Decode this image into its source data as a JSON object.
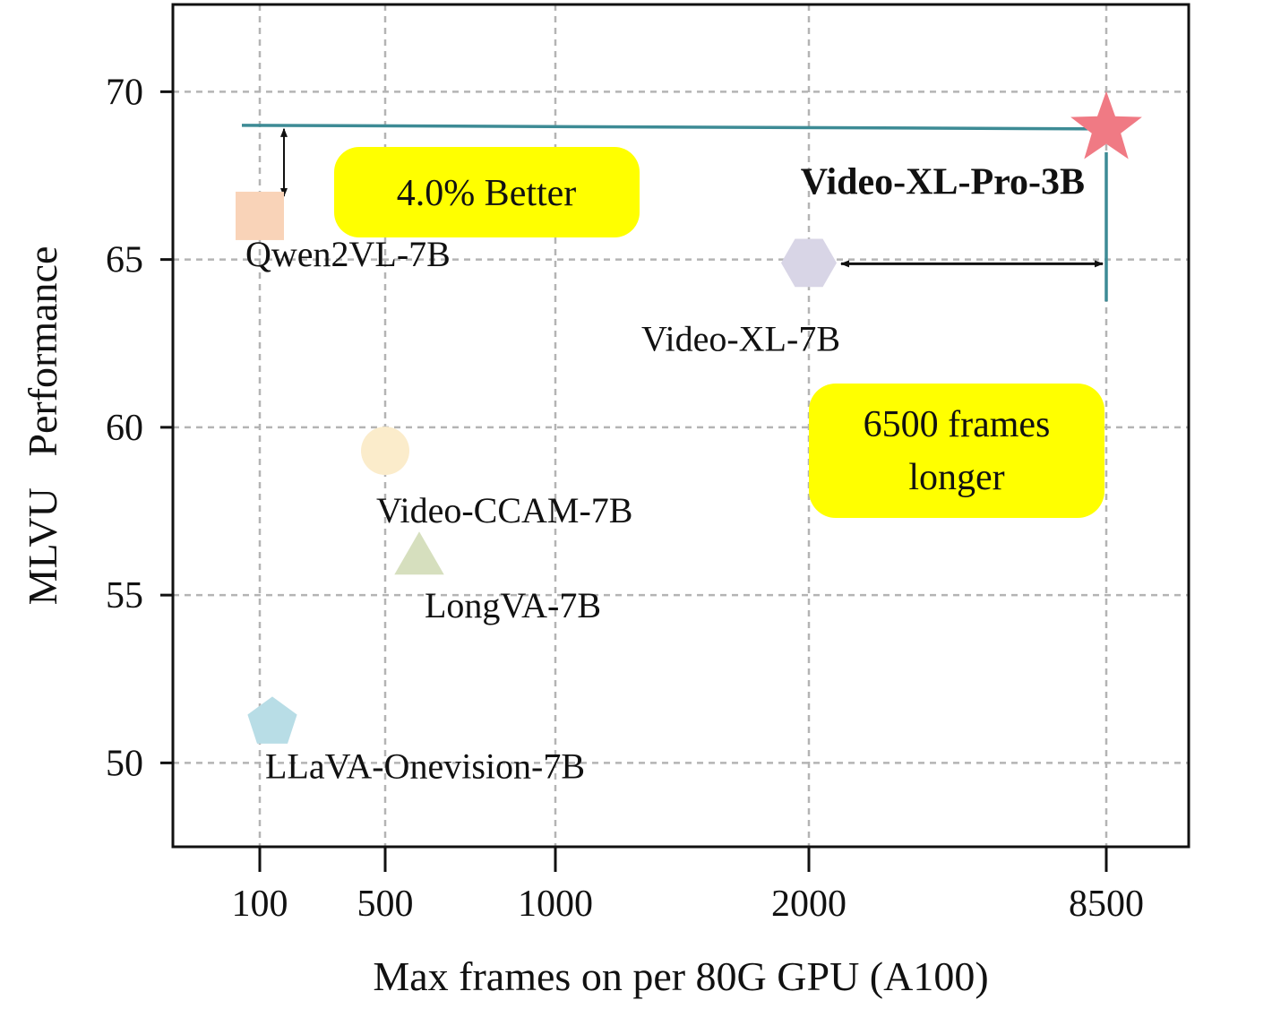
{
  "chart_data": {
    "type": "scatter",
    "xlabel": "Max frames on per 80G GPU (A100)",
    "ylabel": "MLVU   Performance",
    "x_ticks": [
      "100",
      "500",
      "1000",
      "2000",
      "8500"
    ],
    "y_ticks": [
      50,
      55,
      60,
      65,
      70
    ],
    "ylim": [
      47.5,
      72.6
    ],
    "x_scale": "categorical-ticks",
    "grid": true,
    "points": [
      {
        "label": "Qwen2VL-7B",
        "x_frames": 100,
        "y": 66.3,
        "marker": "square",
        "color": "#f9d3b8"
      },
      {
        "label": "Video-CCAM-7B",
        "x_frames": 500,
        "y": 59.3,
        "marker": "circle",
        "color": "#fbeccb"
      },
      {
        "label": "LongVA-7B",
        "x_frames": 600,
        "y": 56.2,
        "marker": "triangle",
        "color": "#d6dfbe"
      },
      {
        "label": "LLaVA-Onevision-7B",
        "x_frames": 140,
        "y": 51.2,
        "marker": "pentagon",
        "color": "#b8dde6"
      },
      {
        "label": "Video-XL-7B",
        "x_frames": 2000,
        "y": 64.9,
        "marker": "hexagon",
        "color": "#d8d5e6"
      },
      {
        "label": "Video-XL-Pro-3B",
        "x_frames": 8500,
        "y": 68.9,
        "marker": "star",
        "color": "#f07a84",
        "highlight": true
      }
    ],
    "reference_line_y": 69.0,
    "reference_line_x": 8500,
    "line_color": "#3d8b95",
    "annotations": [
      {
        "text": "4.0% Better",
        "background": "#ffff00"
      },
      {
        "text_lines": [
          "6500 frames",
          "longer"
        ],
        "background": "#ffff00"
      }
    ]
  }
}
